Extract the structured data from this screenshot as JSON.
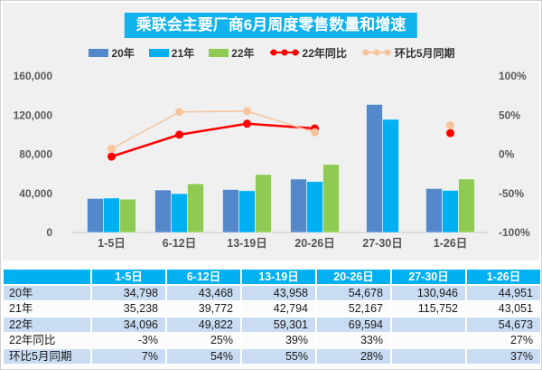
{
  "title": "乘联会主要厂商6月周度零售数量和增速",
  "colors": {
    "title_bg": "#12B2EC",
    "panel_gray": "#F0F0F1",
    "bar_blue": "#5588CB",
    "bar_cyan": "#00B0F0",
    "bar_green": "#8FCB52",
    "line_red": "#FE0000",
    "line_orange": "#F8C49B",
    "table_header_bg": "#00B0F0",
    "row_shaded_bg": "#C9DCF3",
    "row_plain_bg": "#FCFCFC",
    "axis_text": "#595959",
    "baseline": "#D8D8D8"
  },
  "legend": [
    {
      "label": "20年",
      "type": "bar",
      "color": "#5588CB"
    },
    {
      "label": "21年",
      "type": "bar",
      "color": "#00B0F0"
    },
    {
      "label": "22年",
      "type": "bar",
      "color": "#8FCB52"
    },
    {
      "label": "22年同比",
      "type": "line",
      "color": "#FE0000"
    },
    {
      "label": "环比5月同期",
      "type": "line",
      "color": "#F8C49B"
    }
  ],
  "chart_data": {
    "type": "bar",
    "subtype": "grouped bars with two percentage lines on secondary axis",
    "title": "乘联会主要厂商6月周度零售数量和增速",
    "categories": [
      "1-5日",
      "6-12日",
      "13-19日",
      "20-26日",
      "27-30日",
      "1-26日"
    ],
    "bar_series": [
      {
        "name": "20年",
        "color": "#5588CB",
        "values": [
          34798,
          43468,
          43958,
          54678,
          130946,
          44951
        ]
      },
      {
        "name": "21年",
        "color": "#00B0F0",
        "values": [
          35238,
          39772,
          42794,
          52167,
          115752,
          43051
        ]
      },
      {
        "name": "22年",
        "color": "#8FCB52",
        "values": [
          34096,
          49822,
          59301,
          69594,
          null,
          54673
        ]
      }
    ],
    "line_series": [
      {
        "name": "22年同比",
        "color": "#FE0000",
        "axis": "right",
        "values_pct": [
          -3,
          25,
          39,
          33,
          null,
          27
        ]
      },
      {
        "name": "环比5月同期",
        "color": "#F8C49B",
        "axis": "right",
        "values_pct": [
          7,
          54,
          55,
          28,
          null,
          37
        ]
      }
    ],
    "left_axis": {
      "tick_labels": [
        "0",
        "40,000",
        "80,000",
        "120,000",
        "160,000"
      ],
      "tick_values": [
        0,
        40000,
        80000,
        120000,
        160000
      ],
      "min": 0,
      "max": 160000
    },
    "right_axis": {
      "tick_labels": [
        "-100%",
        "-50%",
        "0%",
        "50%",
        "100%"
      ],
      "tick_values": [
        -100,
        -50,
        0,
        50,
        100
      ],
      "min": -100,
      "max": 100
    },
    "grid": false,
    "legend_position": "top"
  },
  "table": {
    "header": [
      "",
      "1-5日",
      "6-12日",
      "13-19日",
      "20-26日",
      "27-30日",
      "1-26日"
    ],
    "rows": [
      {
        "label": "20年",
        "cells": [
          "34,798",
          "43,468",
          "43,958",
          "54,678",
          "130,946",
          "44,951"
        ],
        "shaded": true
      },
      {
        "label": "21年",
        "cells": [
          "35,238",
          "39,772",
          "42,794",
          "52,167",
          "115,752",
          "43,051"
        ],
        "shaded": false
      },
      {
        "label": "22年",
        "cells": [
          "34,096",
          "49,822",
          "59,301",
          "69,594",
          "",
          "54,673"
        ],
        "shaded": true
      },
      {
        "label": "22年同比",
        "cells": [
          "-3%",
          "25%",
          "39%",
          "33%",
          "",
          "27%"
        ],
        "shaded": false
      },
      {
        "label": "环比5月同期",
        "cells": [
          "7%",
          "54%",
          "55%",
          "28%",
          "",
          "37%"
        ],
        "shaded": true
      }
    ]
  }
}
